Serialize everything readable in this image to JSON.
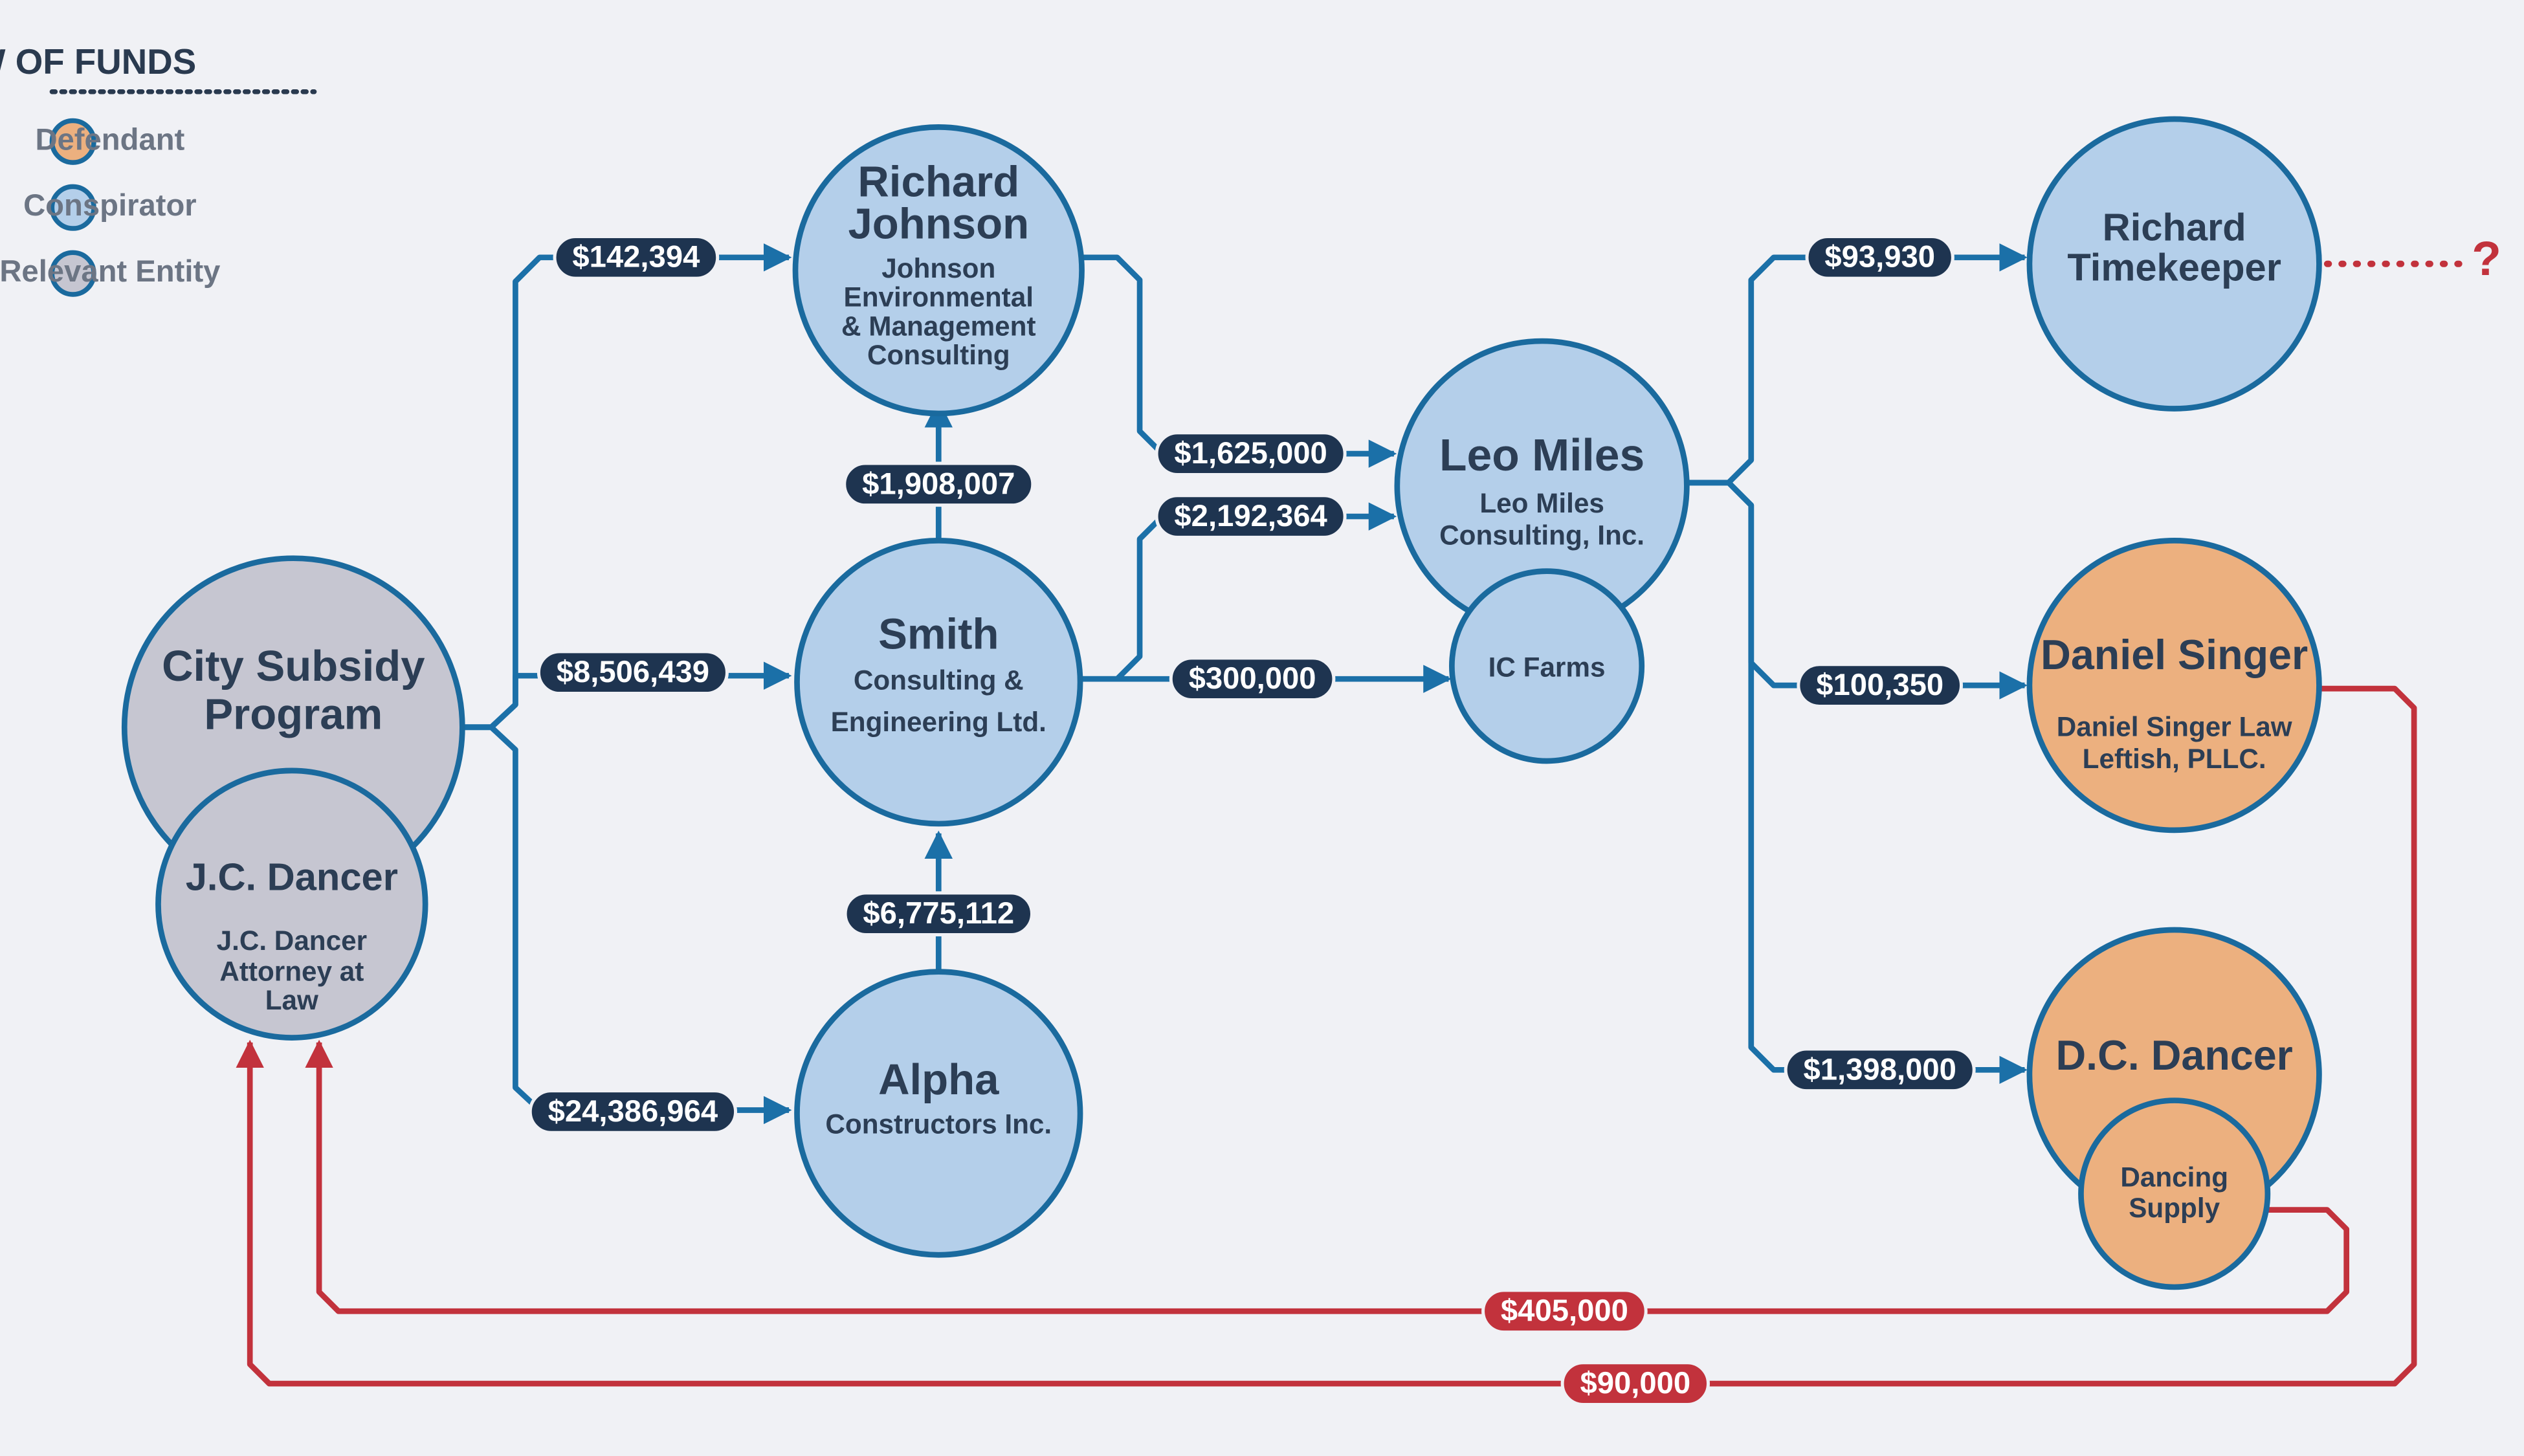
{
  "legend": {
    "title": "FLOW OF FUNDS",
    "items": [
      {
        "label": "Defendant",
        "color": "#ecb07f"
      },
      {
        "label": "Conspirator",
        "color": "#b4cfea"
      },
      {
        "label": "Relevant Entity",
        "color": "#c6c6d1"
      }
    ]
  },
  "nodes": [
    {
      "title": [
        "City Subsidy",
        "Program"
      ]
    },
    {
      "title": [
        "J.C. Dancer"
      ],
      "subtitle": [
        "J.C. Dancer",
        "Attorney at",
        "Law"
      ]
    },
    {
      "title": [
        "Richard",
        "Johnson"
      ],
      "subtitle": [
        "Johnson",
        "Environmental",
        "& Management",
        "Consulting"
      ]
    },
    {
      "title": [
        "Smith"
      ],
      "subtitle": [
        "Consulting &",
        "Engineering Ltd."
      ]
    },
    {
      "title": [
        "Alpha"
      ],
      "subtitle": [
        "Constructors Inc."
      ]
    },
    {
      "title": [
        "Leo Miles"
      ],
      "subtitle": [
        "Leo Miles",
        "Consulting, Inc."
      ]
    },
    {
      "title": [
        "IC Farms"
      ]
    },
    {
      "title": [
        "Richard",
        "Timekeeper"
      ]
    },
    {
      "title": [
        "Daniel Singer"
      ],
      "subtitle": [
        "Daniel Singer Law",
        "Leftish, PLLC."
      ]
    },
    {
      "title": [
        "D.C. Dancer"
      ]
    },
    {
      "title": [
        "Dancing",
        "Supply"
      ]
    }
  ],
  "edges": [
    {
      "amount": "$142,394"
    },
    {
      "amount": "$8,506,439"
    },
    {
      "amount": "$24,386,964"
    },
    {
      "amount": "$1,908,007"
    },
    {
      "amount": "$6,775,112"
    },
    {
      "amount": "$1,625,000"
    },
    {
      "amount": "$2,192,364"
    },
    {
      "amount": "$300,000"
    },
    {
      "amount": "$93,930"
    },
    {
      "amount": "$100,350"
    },
    {
      "amount": "$1,398,000"
    },
    {
      "amount": "$405,000"
    },
    {
      "amount": "$90,000"
    }
  ],
  "unknown": "?"
}
